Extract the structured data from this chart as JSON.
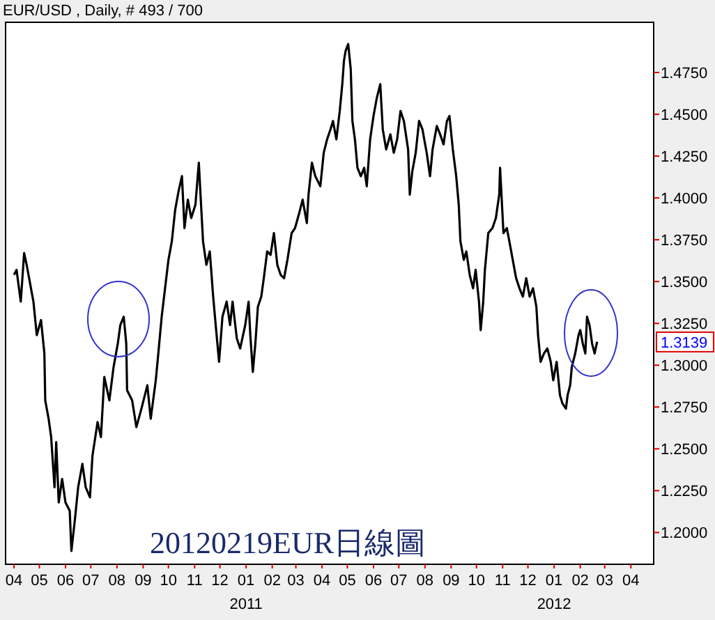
{
  "chart_data": {
    "type": "line",
    "title": "EUR/USD , Daily, # 493 / 700",
    "annotations": [
      "20120219EUR日線圖",
      "2011",
      "2012",
      {
        "text": "1.3139",
        "y": 1.3139
      }
    ],
    "xlim": [
      "2010-03-22",
      "2012-04-28"
    ],
    "xticks": [
      {
        "value": "2010-04-01",
        "label": "04"
      },
      {
        "value": "2010-05-01",
        "label": "05"
      },
      {
        "value": "2010-06-01",
        "label": "06"
      },
      {
        "value": "2010-07-01",
        "label": "07"
      },
      {
        "value": "2010-08-01",
        "label": "08"
      },
      {
        "value": "2010-09-01",
        "label": "09"
      },
      {
        "value": "2010-10-01",
        "label": "10"
      },
      {
        "value": "2010-11-01",
        "label": "11"
      },
      {
        "value": "2010-12-01",
        "label": "12"
      },
      {
        "value": "2011-01-01",
        "label": "01"
      },
      {
        "value": "2011-02-01",
        "label": "02"
      },
      {
        "value": "2011-03-01",
        "label": "03"
      },
      {
        "value": "2011-04-01",
        "label": "04"
      },
      {
        "value": "2011-05-01",
        "label": "05"
      },
      {
        "value": "2011-06-01",
        "label": "06"
      },
      {
        "value": "2011-07-01",
        "label": "07"
      },
      {
        "value": "2011-08-01",
        "label": "08"
      },
      {
        "value": "2011-09-01",
        "label": "09"
      },
      {
        "value": "2011-10-01",
        "label": "10"
      },
      {
        "value": "2011-11-01",
        "label": "11"
      },
      {
        "value": "2011-12-01",
        "label": "12"
      },
      {
        "value": "2012-01-01",
        "label": "01"
      },
      {
        "value": "2012-02-01",
        "label": "02"
      },
      {
        "value": "2012-03-01",
        "label": "03"
      },
      {
        "value": "2012-04-01",
        "label": "04"
      }
    ],
    "ylim": [
      1.181,
      1.505
    ],
    "yticks": [
      {
        "value": 1.2,
        "label": "1.2000"
      },
      {
        "value": 1.225,
        "label": "1.2250"
      },
      {
        "value": 1.25,
        "label": "1.2500"
      },
      {
        "value": 1.275,
        "label": "1.2750"
      },
      {
        "value": 1.3,
        "label": "1.3000"
      },
      {
        "value": 1.325,
        "label": "1.3250"
      },
      {
        "value": 1.35,
        "label": "1.3500"
      },
      {
        "value": 1.375,
        "label": "1.3750"
      },
      {
        "value": 1.4,
        "label": "1.4000"
      },
      {
        "value": 1.425,
        "label": "1.4250"
      },
      {
        "value": 1.45,
        "label": "1.4500"
      },
      {
        "value": 1.475,
        "label": "1.4750"
      }
    ],
    "series": [
      {
        "color": "#000000",
        "x": [
          "2010-04-01",
          "2010-04-04",
          "2010-04-09",
          "2010-04-13",
          "2010-04-16",
          "2010-04-20",
          "2010-04-24",
          "2010-04-28",
          "2010-05-03",
          "2010-05-07",
          "2010-05-08",
          "2010-05-12",
          "2010-05-15",
          "2010-05-19",
          "2010-05-21",
          "2010-05-24",
          "2010-05-28",
          "2010-06-01",
          "2010-06-06",
          "2010-06-08",
          "2010-06-12",
          "2010-06-16",
          "2010-06-21",
          "2010-06-25",
          "2010-06-30",
          "2010-07-03",
          "2010-07-09",
          "2010-07-13",
          "2010-07-17",
          "2010-07-23",
          "2010-07-28",
          "2010-08-02",
          "2010-08-05",
          "2010-08-09",
          "2010-08-12",
          "2010-08-13",
          "2010-08-19",
          "2010-08-24",
          "2010-08-30",
          "2010-09-06",
          "2010-09-10",
          "2010-09-16",
          "2010-09-19",
          "2010-09-23",
          "2010-09-27",
          "2010-10-01",
          "2010-10-05",
          "2010-10-09",
          "2010-10-13",
          "2010-10-17",
          "2010-10-20",
          "2010-10-24",
          "2010-10-28",
          "2010-11-02",
          "2010-11-06",
          "2010-11-08",
          "2010-11-11",
          "2010-11-15",
          "2010-11-19",
          "2010-11-23",
          "2010-11-26",
          "2010-11-30",
          "2010-12-04",
          "2010-12-09",
          "2010-12-13",
          "2010-12-16",
          "2010-12-21",
          "2010-12-25",
          "2010-12-31",
          "2011-01-04",
          "2011-01-06",
          "2011-01-09",
          "2011-01-12",
          "2011-01-15",
          "2011-01-19",
          "2011-01-22",
          "2011-01-26",
          "2011-01-30",
          "2011-02-03",
          "2011-02-07",
          "2011-02-11",
          "2011-02-15",
          "2011-02-19",
          "2011-02-24",
          "2011-02-28",
          "2011-03-05",
          "2011-03-09",
          "2011-03-14",
          "2011-03-16",
          "2011-03-20",
          "2011-03-24",
          "2011-03-30",
          "2011-04-03",
          "2011-04-07",
          "2011-04-11",
          "2011-04-14",
          "2011-04-18",
          "2011-04-22",
          "2011-04-25",
          "2011-04-27",
          "2011-04-29",
          "2011-05-02",
          "2011-05-05",
          "2011-05-07",
          "2011-05-10",
          "2011-05-13",
          "2011-05-17",
          "2011-05-21",
          "2011-05-24",
          "2011-05-28",
          "2011-06-01",
          "2011-06-05",
          "2011-06-09",
          "2011-06-12",
          "2011-06-16",
          "2011-06-21",
          "2011-06-25",
          "2011-06-29",
          "2011-07-03",
          "2011-07-07",
          "2011-07-12",
          "2011-07-14",
          "2011-07-17",
          "2011-07-21",
          "2011-07-25",
          "2011-07-29",
          "2011-08-03",
          "2011-08-07",
          "2011-08-10",
          "2011-08-15",
          "2011-08-19",
          "2011-08-23",
          "2011-08-27",
          "2011-08-30",
          "2011-09-03",
          "2011-09-07",
          "2011-09-10",
          "2011-09-12",
          "2011-09-16",
          "2011-09-19",
          "2011-09-23",
          "2011-09-27",
          "2011-09-30",
          "2011-10-04",
          "2011-10-06",
          "2011-10-09",
          "2011-10-11",
          "2011-10-15",
          "2011-10-20",
          "2011-10-24",
          "2011-10-28",
          "2011-10-29",
          "2011-11-02",
          "2011-11-06",
          "2011-11-09",
          "2011-11-13",
          "2011-11-17",
          "2011-11-21",
          "2011-11-25",
          "2011-11-29",
          "2011-12-03",
          "2011-12-07",
          "2011-12-11",
          "2011-12-13",
          "2011-12-16",
          "2011-12-20",
          "2011-12-24",
          "2011-12-28",
          "2011-12-31",
          "2012-01-04",
          "2012-01-08",
          "2012-01-11",
          "2012-01-15",
          "2012-01-17",
          "2012-01-20",
          "2012-01-22",
          "2012-01-26",
          "2012-01-30",
          "2012-02-01",
          "2012-02-04",
          "2012-02-07",
          "2012-02-09",
          "2012-02-12",
          "2012-02-15",
          "2012-02-18",
          "2012-02-21"
        ],
        "values": [
          1.354,
          1.357,
          1.338,
          1.367,
          1.36,
          1.349,
          1.338,
          1.318,
          1.327,
          1.307,
          1.279,
          1.268,
          1.257,
          1.227,
          1.254,
          1.218,
          1.232,
          1.218,
          1.213,
          1.189,
          1.207,
          1.227,
          1.241,
          1.227,
          1.221,
          1.246,
          1.266,
          1.257,
          1.293,
          1.279,
          1.299,
          1.313,
          1.324,
          1.329,
          1.313,
          1.285,
          1.279,
          1.263,
          1.274,
          1.288,
          1.268,
          1.291,
          1.307,
          1.329,
          1.346,
          1.363,
          1.374,
          1.393,
          1.404,
          1.413,
          1.382,
          1.399,
          1.388,
          1.396,
          1.421,
          1.402,
          1.374,
          1.36,
          1.368,
          1.341,
          1.324,
          1.302,
          1.329,
          1.338,
          1.324,
          1.338,
          1.316,
          1.31,
          1.324,
          1.338,
          1.318,
          1.296,
          1.313,
          1.335,
          1.341,
          1.352,
          1.368,
          1.366,
          1.379,
          1.36,
          1.354,
          1.352,
          1.363,
          1.379,
          1.382,
          1.391,
          1.399,
          1.385,
          1.402,
          1.421,
          1.413,
          1.407,
          1.427,
          1.435,
          1.441,
          1.446,
          1.435,
          1.452,
          1.468,
          1.482,
          1.488,
          1.492,
          1.477,
          1.446,
          1.435,
          1.418,
          1.413,
          1.418,
          1.407,
          1.435,
          1.449,
          1.46,
          1.468,
          1.441,
          1.429,
          1.438,
          1.427,
          1.435,
          1.452,
          1.446,
          1.429,
          1.402,
          1.416,
          1.427,
          1.446,
          1.441,
          1.427,
          1.413,
          1.429,
          1.443,
          1.438,
          1.432,
          1.446,
          1.449,
          1.429,
          1.413,
          1.396,
          1.374,
          1.363,
          1.368,
          1.354,
          1.346,
          1.357,
          1.338,
          1.321,
          1.338,
          1.357,
          1.379,
          1.382,
          1.388,
          1.402,
          1.418,
          1.379,
          1.382,
          1.374,
          1.363,
          1.352,
          1.346,
          1.341,
          1.352,
          1.341,
          1.346,
          1.335,
          1.318,
          1.302,
          1.307,
          1.31,
          1.302,
          1.291,
          1.302,
          1.282,
          1.277,
          1.274,
          1.282,
          1.288,
          1.299,
          1.307,
          1.318,
          1.321,
          1.313,
          1.307,
          1.329,
          1.324,
          1.313,
          1.307,
          1.314
        ]
      }
    ]
  }
}
